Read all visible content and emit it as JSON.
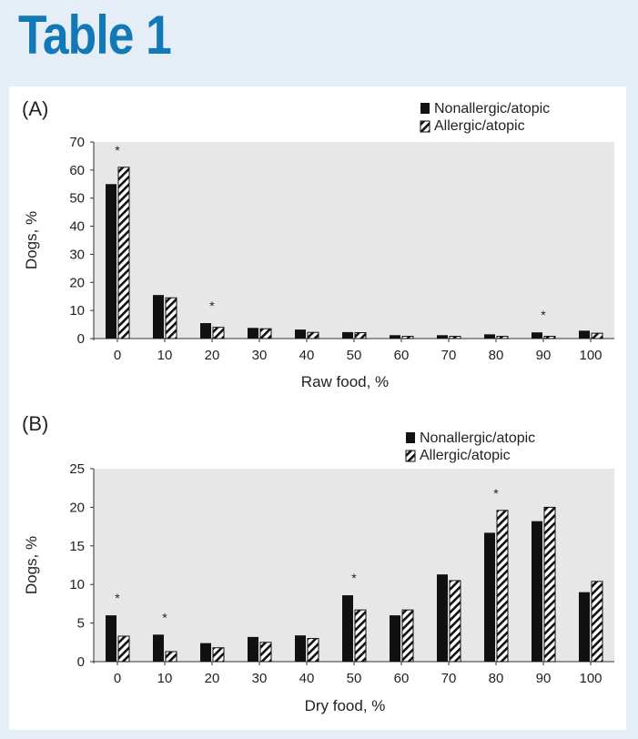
{
  "page_title": "Table 1",
  "chart_data": [
    {
      "type": "bar",
      "panel": "(A)",
      "categories": [
        "0",
        "10",
        "20",
        "30",
        "40",
        "50",
        "60",
        "70",
        "80",
        "90",
        "100"
      ],
      "series": [
        {
          "name": "Nonallergic/atopic",
          "pattern": "solid",
          "values": [
            55,
            15.5,
            5.5,
            3.8,
            3.2,
            2.3,
            1.2,
            1.2,
            1.5,
            2.2,
            2.8
          ]
        },
        {
          "name": "Allergic/atopic",
          "pattern": "hatched",
          "values": [
            61,
            14.5,
            4,
            3.5,
            2.2,
            2.1,
            0.8,
            0.8,
            0.8,
            0.8,
            1.9
          ]
        }
      ],
      "significant": [
        "0",
        "20",
        "90"
      ],
      "marker": "*",
      "xlabel": "Raw food, %",
      "ylabel": "Dogs, %",
      "ylim": [
        0,
        70
      ],
      "yticks": [
        0,
        10,
        20,
        30,
        40,
        50,
        60,
        70
      ],
      "legend": "top-right"
    },
    {
      "type": "bar",
      "panel": "(B)",
      "categories": [
        "0",
        "10",
        "20",
        "30",
        "40",
        "50",
        "60",
        "70",
        "80",
        "90",
        "100"
      ],
      "series": [
        {
          "name": "Nonallergic/atopic",
          "pattern": "solid",
          "values": [
            6,
            3.5,
            2.4,
            3.2,
            3.4,
            8.6,
            6,
            11.3,
            16.7,
            18.2,
            9
          ]
        },
        {
          "name": "Allergic/atopic",
          "pattern": "hatched",
          "values": [
            3.3,
            1.3,
            1.8,
            2.5,
            3,
            6.7,
            6.7,
            10.5,
            19.6,
            20,
            10.4
          ]
        }
      ],
      "significant": [
        "0",
        "10",
        "50",
        "80"
      ],
      "marker": "*",
      "xlabel": "Dry food, %",
      "ylabel": "Dogs, %",
      "ylim": [
        0,
        25
      ],
      "yticks": [
        0,
        5,
        10,
        15,
        20,
        25
      ],
      "legend": "top-right"
    }
  ],
  "colors": {
    "title": "#1279b6",
    "page_bg": "#e5eef7",
    "plot_bg": "#e7e7e7",
    "bar": "#111111"
  }
}
